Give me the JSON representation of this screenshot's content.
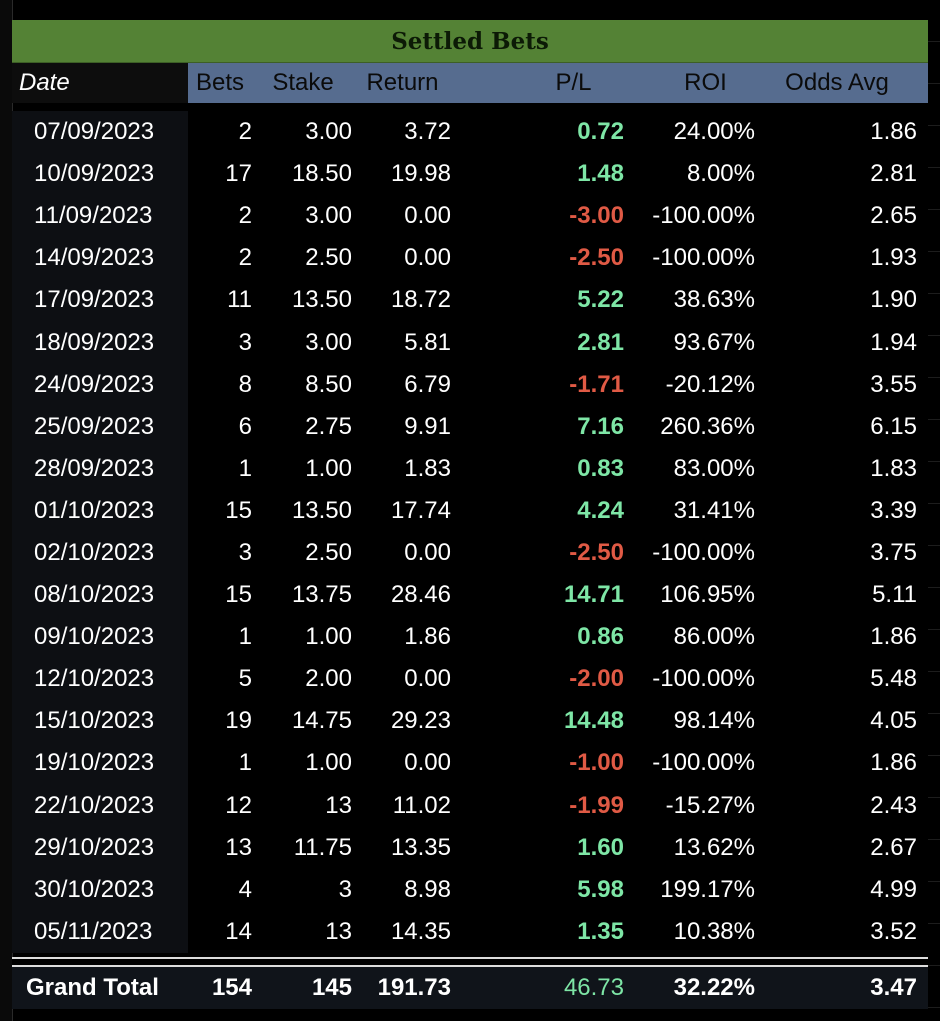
{
  "sheet": {
    "title": "Settled Bets",
    "headers": {
      "date": "Date",
      "bets": "Bets",
      "stake": "Stake",
      "return": "Return",
      "pl": "P/L",
      "roi": "ROI",
      "odds": "Odds Avg"
    },
    "rows": [
      {
        "date": "07/09/2023",
        "bets": "2",
        "stake": "3.00",
        "return": "3.72",
        "pl": "0.72",
        "roi": "24.00%",
        "odds": "1.86"
      },
      {
        "date": "10/09/2023",
        "bets": "17",
        "stake": "18.50",
        "return": "19.98",
        "pl": "1.48",
        "roi": "8.00%",
        "odds": "2.81"
      },
      {
        "date": "11/09/2023",
        "bets": "2",
        "stake": "3.00",
        "return": "0.00",
        "pl": "-3.00",
        "roi": "-100.00%",
        "odds": "2.65"
      },
      {
        "date": "14/09/2023",
        "bets": "2",
        "stake": "2.50",
        "return": "0.00",
        "pl": "-2.50",
        "roi": "-100.00%",
        "odds": "1.93"
      },
      {
        "date": "17/09/2023",
        "bets": "11",
        "stake": "13.50",
        "return": "18.72",
        "pl": "5.22",
        "roi": "38.63%",
        "odds": "1.90"
      },
      {
        "date": "18/09/2023",
        "bets": "3",
        "stake": "3.00",
        "return": "5.81",
        "pl": "2.81",
        "roi": "93.67%",
        "odds": "1.94"
      },
      {
        "date": "24/09/2023",
        "bets": "8",
        "stake": "8.50",
        "return": "6.79",
        "pl": "-1.71",
        "roi": "-20.12%",
        "odds": "3.55"
      },
      {
        "date": "25/09/2023",
        "bets": "6",
        "stake": "2.75",
        "return": "9.91",
        "pl": "7.16",
        "roi": "260.36%",
        "odds": "6.15"
      },
      {
        "date": "28/09/2023",
        "bets": "1",
        "stake": "1.00",
        "return": "1.83",
        "pl": "0.83",
        "roi": "83.00%",
        "odds": "1.83"
      },
      {
        "date": "01/10/2023",
        "bets": "15",
        "stake": "13.50",
        "return": "17.74",
        "pl": "4.24",
        "roi": "31.41%",
        "odds": "3.39"
      },
      {
        "date": "02/10/2023",
        "bets": "3",
        "stake": "2.50",
        "return": "0.00",
        "pl": "-2.50",
        "roi": "-100.00%",
        "odds": "3.75"
      },
      {
        "date": "08/10/2023",
        "bets": "15",
        "stake": "13.75",
        "return": "28.46",
        "pl": "14.71",
        "roi": "106.95%",
        "odds": "5.11"
      },
      {
        "date": "09/10/2023",
        "bets": "1",
        "stake": "1.00",
        "return": "1.86",
        "pl": "0.86",
        "roi": "86.00%",
        "odds": "1.86"
      },
      {
        "date": "12/10/2023",
        "bets": "5",
        "stake": "2.00",
        "return": "0.00",
        "pl": "-2.00",
        "roi": "-100.00%",
        "odds": "5.48"
      },
      {
        "date": "15/10/2023",
        "bets": "19",
        "stake": "14.75",
        "return": "29.23",
        "pl": "14.48",
        "roi": "98.14%",
        "odds": "4.05"
      },
      {
        "date": "19/10/2023",
        "bets": "1",
        "stake": "1.00",
        "return": "0.00",
        "pl": "-1.00",
        "roi": "-100.00%",
        "odds": "1.86"
      },
      {
        "date": "22/10/2023",
        "bets": "12",
        "stake": "13",
        "return": "11.02",
        "pl": "-1.99",
        "roi": "-15.27%",
        "odds": "2.43"
      },
      {
        "date": "29/10/2023",
        "bets": "13",
        "stake": "11.75",
        "return": "13.35",
        "pl": "1.60",
        "roi": "13.62%",
        "odds": "2.67"
      },
      {
        "date": "30/10/2023",
        "bets": "4",
        "stake": "3",
        "return": "8.98",
        "pl": "5.98",
        "roi": "199.17%",
        "odds": "4.99"
      },
      {
        "date": "05/11/2023",
        "bets": "14",
        "stake": "13",
        "return": "14.35",
        "pl": "1.35",
        "roi": "10.38%",
        "odds": "3.52"
      }
    ],
    "total": {
      "label": "Grand Total",
      "bets": "154",
      "stake": "145",
      "return": "191.73",
      "pl": "46.73",
      "roi": "32.22%",
      "odds": "3.47"
    }
  },
  "colors": {
    "title_bg": "#548235",
    "header_bg": "#566c8f",
    "positive": "#7ee6a6",
    "negative": "#e05a45"
  }
}
